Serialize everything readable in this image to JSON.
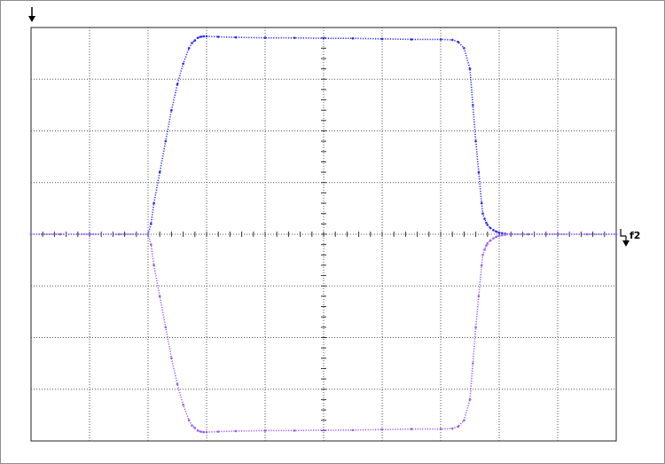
{
  "chart_data": {
    "type": "scatter",
    "title": "",
    "xlabel": "",
    "ylabel": "",
    "grid": true,
    "divisions": {
      "x": 10,
      "y": 8
    },
    "xlim": [
      0,
      10
    ],
    "ylim": [
      -4,
      4
    ],
    "reference_marker_label": "f2",
    "colors": {
      "upper_trace": "#2a2af5",
      "lower_trace": "#9a5ff0",
      "grid": "#555555",
      "markers": "#000000"
    },
    "series": [
      {
        "x": [
          0,
          0.5,
          1,
          1.5,
          2,
          2.05,
          2.1,
          2.2,
          2.3,
          2.4,
          2.5,
          2.6,
          2.7,
          2.75,
          2.8,
          2.85,
          2.9,
          2.95,
          3,
          3.2,
          3.5,
          4,
          4.5,
          5,
          5.5,
          6,
          6.5,
          7,
          7.2,
          7.3,
          7.4,
          7.5,
          7.55,
          7.6,
          7.65,
          7.7,
          7.72,
          7.75,
          7.78,
          7.8,
          7.85,
          7.9,
          7.95,
          8,
          8.05,
          8.1,
          8.2,
          8.5,
          9,
          9.5,
          10
        ],
        "y": [
          0,
          0,
          0,
          0,
          0,
          0.2,
          0.6,
          1.2,
          1.8,
          2.4,
          2.9,
          3.3,
          3.6,
          3.7,
          3.75,
          3.8,
          3.82,
          3.83,
          3.83,
          3.82,
          3.81,
          3.8,
          3.8,
          3.79,
          3.79,
          3.78,
          3.77,
          3.77,
          3.76,
          3.72,
          3.6,
          3.2,
          2.5,
          1.8,
          1.2,
          0.6,
          0.4,
          0.3,
          0.22,
          0.18,
          0.12,
          0.08,
          0.05,
          0.03,
          0.02,
          0.01,
          0,
          0,
          0,
          0,
          0
        ]
      },
      {
        "x": [
          0,
          0.5,
          1,
          1.5,
          2,
          2.05,
          2.1,
          2.2,
          2.3,
          2.4,
          2.5,
          2.6,
          2.7,
          2.75,
          2.8,
          2.85,
          2.9,
          2.95,
          3,
          3.2,
          3.5,
          4,
          4.5,
          5,
          5.5,
          6,
          6.5,
          7,
          7.2,
          7.3,
          7.4,
          7.5,
          7.55,
          7.6,
          7.65,
          7.7,
          7.72,
          7.75,
          7.78,
          7.8,
          7.85,
          7.9,
          7.95,
          8,
          8.05,
          8.1,
          8.2,
          8.5,
          9,
          9.5,
          10
        ],
        "y": [
          0,
          0,
          0,
          0,
          0,
          -0.2,
          -0.6,
          -1.2,
          -1.8,
          -2.4,
          -2.9,
          -3.3,
          -3.6,
          -3.7,
          -3.75,
          -3.8,
          -3.82,
          -3.83,
          -3.83,
          -3.82,
          -3.81,
          -3.8,
          -3.8,
          -3.79,
          -3.79,
          -3.78,
          -3.77,
          -3.77,
          -3.76,
          -3.72,
          -3.6,
          -3.2,
          -2.5,
          -1.8,
          -1.2,
          -0.6,
          -0.4,
          -0.3,
          -0.22,
          -0.18,
          -0.12,
          -0.08,
          -0.05,
          -0.03,
          -0.02,
          -0.01,
          0,
          0,
          0,
          0,
          0
        ]
      }
    ]
  }
}
